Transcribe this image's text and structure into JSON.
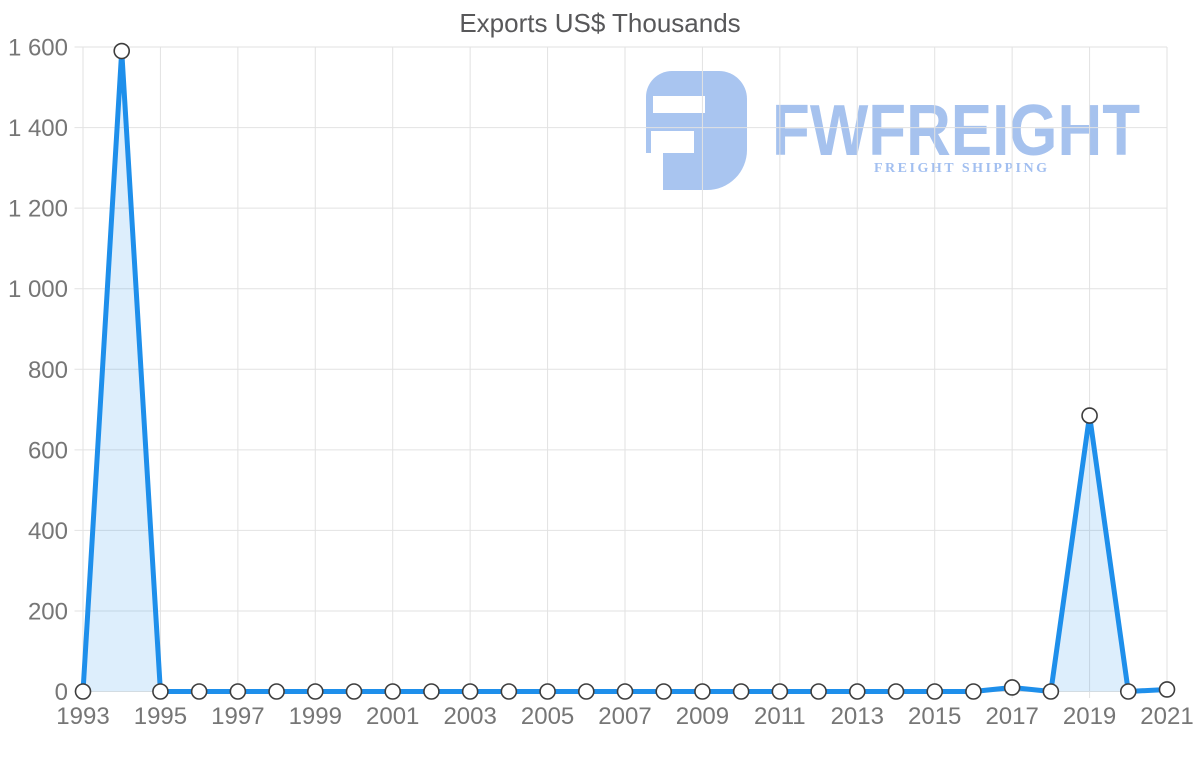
{
  "chart": {
    "title": "Exports US$ Thousands"
  },
  "chart_data": {
    "type": "area",
    "title": "Exports US$ Thousands",
    "xlabel": "",
    "ylabel": "",
    "x": [
      1993,
      1994,
      1995,
      1996,
      1997,
      1998,
      1999,
      2000,
      2001,
      2002,
      2003,
      2004,
      2005,
      2006,
      2007,
      2008,
      2009,
      2010,
      2011,
      2012,
      2013,
      2014,
      2015,
      2016,
      2017,
      2018,
      2019,
      2020,
      2021
    ],
    "values": [
      0,
      1590,
      0,
      0,
      0,
      0,
      0,
      0,
      0,
      0,
      0,
      0,
      0,
      0,
      0,
      0,
      0,
      0,
      0,
      0,
      0,
      0,
      0,
      0,
      10,
      0,
      685,
      0,
      5
    ],
    "series_name": "Exports US$ Thousands",
    "xlim": [
      1993,
      2021
    ],
    "ylim": [
      0,
      1600
    ],
    "y_ticks": [
      0,
      200,
      400,
      600,
      800,
      1000,
      1200,
      1400,
      1600
    ],
    "y_tick_labels": [
      "0",
      "200",
      "400",
      "600",
      "800",
      "1 000",
      "1 200",
      "1 400",
      "1 600"
    ],
    "x_labeled_years": [
      1993,
      1995,
      1997,
      1999,
      2001,
      2003,
      2005,
      2007,
      2009,
      2011,
      2013,
      2015,
      2017,
      2019,
      2021
    ],
    "x_tick_labels": [
      "1993",
      "1995",
      "1997",
      "1999",
      "2001",
      "2003",
      "2005",
      "2007",
      "2009",
      "2011",
      "2013",
      "2015",
      "2017",
      "2019",
      "2021"
    ],
    "grid": true,
    "legend": "none",
    "line_color": "#1E8FEB",
    "fill_color": "rgba(30,143,235,0.15)",
    "grid_color": "#e2e2e2",
    "marker_style": "white-circle-dark-outline"
  },
  "logo": {
    "brand": "FWFREIGHT",
    "tagline": "FREIGHT SHIPPING",
    "color": "#A9C5F0"
  }
}
